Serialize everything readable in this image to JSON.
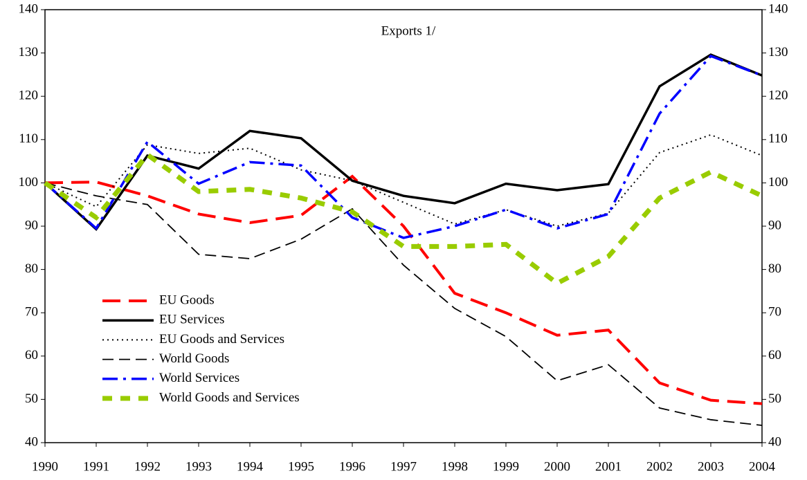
{
  "chart_data": {
    "type": "line",
    "title": "Exports 1/",
    "x": [
      1990,
      1991,
      1992,
      1993,
      1994,
      1995,
      1996,
      1997,
      1998,
      1999,
      2000,
      2001,
      2002,
      2003,
      2004
    ],
    "xlim": [
      1990,
      2004
    ],
    "xticks": [
      1990,
      1991,
      1992,
      1993,
      1994,
      1995,
      1996,
      1997,
      1998,
      1999,
      2000,
      2001,
      2002,
      2003,
      2004
    ],
    "ylim": [
      40,
      140
    ],
    "yticks": [
      40,
      50,
      60,
      70,
      80,
      90,
      100,
      110,
      120,
      130,
      140
    ],
    "y2lim": [
      40,
      140
    ],
    "y2ticks": [
      40,
      50,
      60,
      70,
      80,
      90,
      100,
      110,
      120,
      130,
      140
    ],
    "grid": false,
    "legend": "lower left",
    "series": [
      {
        "name": "EU Goods",
        "color": "#ff0000",
        "linestyle": "dashed-thick",
        "values": [
          100,
          100.2,
          97,
          92.8,
          90.8,
          92.5,
          101.5,
          90,
          74.5,
          70,
          64.8,
          66,
          53.8,
          49.8,
          49
        ]
      },
      {
        "name": "EU Services",
        "color": "#000000",
        "linestyle": "solid",
        "values": [
          100,
          89.3,
          106.3,
          103.3,
          112,
          110.3,
          100.5,
          97,
          95.3,
          99.8,
          98.3,
          99.7,
          122.3,
          129.6,
          124.8
        ]
      },
      {
        "name": "EU Goods and Services",
        "color": "#000000",
        "linestyle": "dotted",
        "values": [
          100,
          94.5,
          108.8,
          106.8,
          108,
          103,
          100.5,
          95.5,
          90.5,
          93.8,
          90,
          93,
          107,
          111.1,
          106.3
        ]
      },
      {
        "name": "World Goods",
        "color": "#000000",
        "linestyle": "dashed",
        "values": [
          100,
          97,
          95,
          83.5,
          82.5,
          87,
          94,
          81,
          71,
          64.5,
          54.3,
          58,
          48,
          45.3,
          44
        ]
      },
      {
        "name": "World Services",
        "color": "#0000ff",
        "linestyle": "dash-dot",
        "values": [
          100,
          89.5,
          109.5,
          99.8,
          104.8,
          104,
          92,
          87.3,
          90,
          93.8,
          89.5,
          92.8,
          116,
          129.3,
          124.8
        ]
      },
      {
        "name": "World Goods and Services",
        "color": "#99cc00",
        "linestyle": "dashed-heavy",
        "values": [
          100,
          92,
          106.5,
          98,
          98.5,
          96.5,
          93.3,
          85.3,
          85.3,
          85.8,
          76.8,
          83,
          96.5,
          102.5,
          97
        ]
      }
    ]
  }
}
